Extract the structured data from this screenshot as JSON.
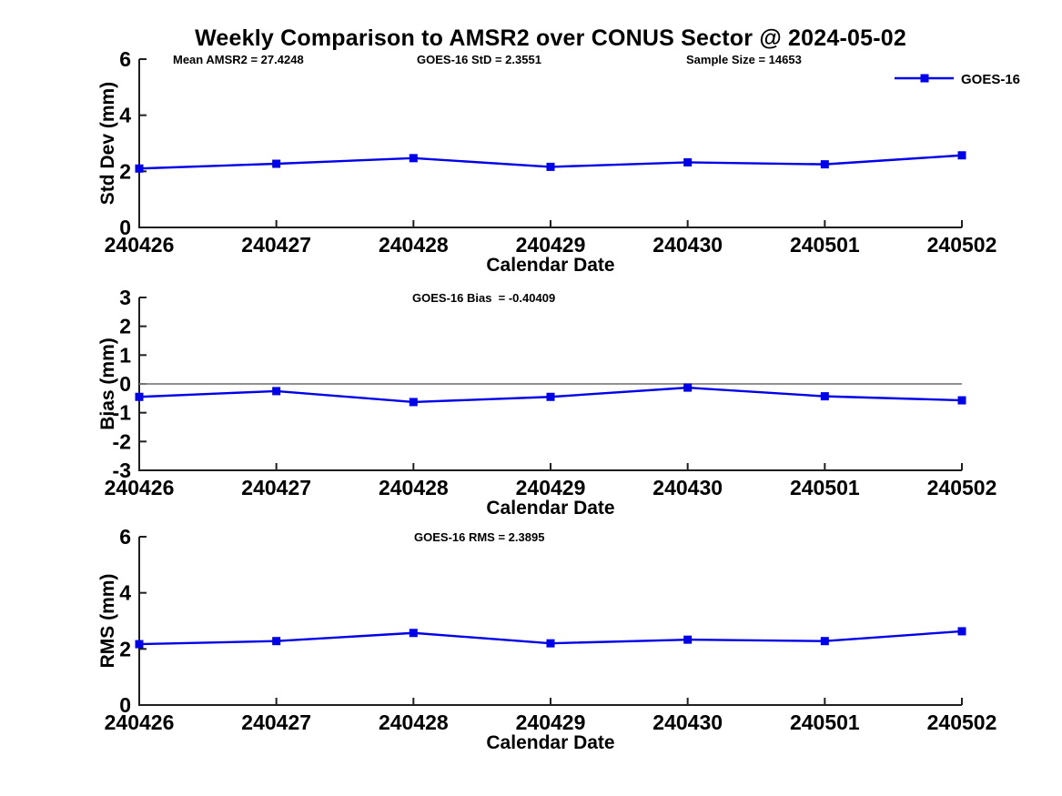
{
  "title": "Weekly Comparison to AMSR2 over CONUS Sector @ 2024-05-02",
  "legend": {
    "label": "GOES-16",
    "position": "top-right"
  },
  "colors": {
    "series_blue": "#0000e8",
    "axis": "#1f1f1f",
    "zero_line": "#808080",
    "text": "#000000"
  },
  "chart_data": [
    {
      "type": "line",
      "categories": [
        "240426",
        "240427",
        "240428",
        "240429",
        "240430",
        "240501",
        "240502"
      ],
      "series": [
        {
          "name": "GOES-16",
          "values": [
            2.1,
            2.27,
            2.47,
            2.16,
            2.32,
            2.25,
            2.57
          ]
        }
      ],
      "annotations": [
        "Mean AMSR2 = 27.4248",
        "GOES-16 StD = 2.3551",
        "Sample Size = 14653"
      ],
      "xlabel": "Calendar Date",
      "ylabel": "Std Dev (mm)",
      "ylim": [
        0,
        6
      ],
      "yticks": [
        0,
        2,
        4,
        6
      ],
      "grid": false,
      "zero_line": false,
      "legend": "GOES-16",
      "legend_position": "top-right-outside"
    },
    {
      "type": "line",
      "categories": [
        "240426",
        "240427",
        "240428",
        "240429",
        "240430",
        "240501",
        "240502"
      ],
      "series": [
        {
          "name": "GOES-16",
          "values": [
            -0.45,
            -0.25,
            -0.63,
            -0.45,
            -0.13,
            -0.43,
            -0.57
          ]
        }
      ],
      "annotations": [
        "GOES-16 Bias  = -0.40409"
      ],
      "xlabel": "Calendar Date",
      "ylabel": "Bias (mm)",
      "ylim": [
        -3,
        3
      ],
      "yticks": [
        -3,
        -2,
        -1,
        0,
        1,
        2,
        3
      ],
      "grid": false,
      "zero_line": true,
      "legend": null,
      "legend_position": null
    },
    {
      "type": "line",
      "categories": [
        "240426",
        "240427",
        "240428",
        "240429",
        "240430",
        "240501",
        "240502"
      ],
      "series": [
        {
          "name": "GOES-16",
          "values": [
            2.17,
            2.28,
            2.57,
            2.2,
            2.33,
            2.28,
            2.63
          ]
        }
      ],
      "annotations": [
        "GOES-16 RMS = 2.3895"
      ],
      "xlabel": "Calendar Date",
      "ylabel": "RMS (mm)",
      "ylim": [
        0,
        6
      ],
      "yticks": [
        0,
        2,
        4,
        6
      ],
      "grid": false,
      "zero_line": false,
      "legend": null,
      "legend_position": null
    }
  ]
}
